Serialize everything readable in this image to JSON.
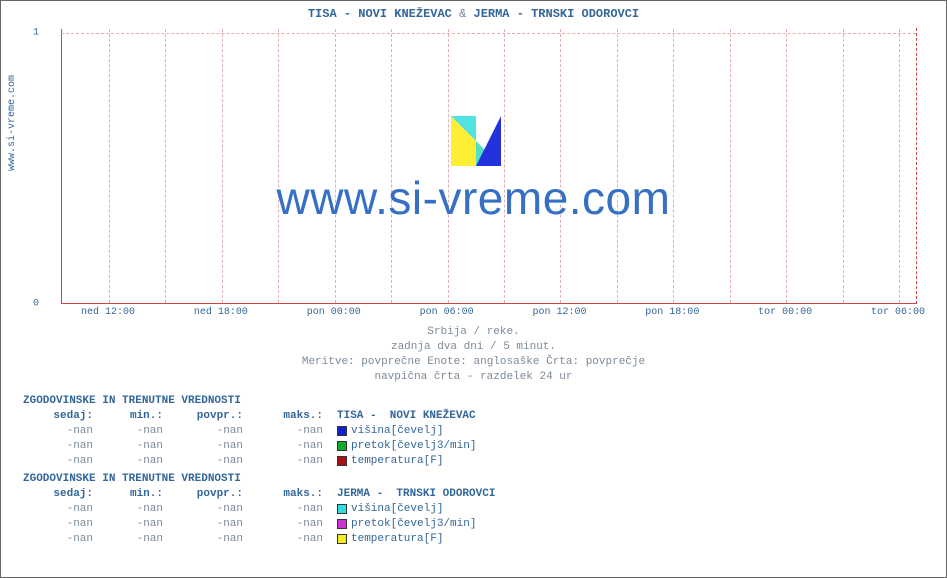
{
  "side_label": "www.si-vreme.com",
  "title_parts": {
    "a": "TISA -  NOVI KNEŽEVAC",
    "amp": " & ",
    "b": "JERMA -  TRNSKI ODOROVCI"
  },
  "chart": {
    "type": "line",
    "background_color": "#ffffff",
    "axis_color": "#cc4444",
    "grid_color": "#e0b0b0",
    "ylim": [
      0,
      1
    ],
    "yticks": [
      0,
      1
    ],
    "xticks": [
      "ned 12:00",
      "ned 18:00",
      "pon 00:00",
      "pon 06:00",
      "pon 12:00",
      "pon 18:00",
      "tor 00:00",
      "tor 06:00"
    ],
    "xtick_positions_pct": [
      5.5,
      18.7,
      31.9,
      45.1,
      58.3,
      71.5,
      84.7,
      97.9
    ],
    "vgrid_positions_pct": [
      5.5,
      12.1,
      18.7,
      25.3,
      31.9,
      38.5,
      45.1,
      51.7,
      58.3,
      64.9,
      71.5,
      78.1,
      84.7,
      91.3,
      97.9
    ],
    "series": []
  },
  "sublines": [
    "Srbija / reke.",
    "zadnja dva dni / 5 minut.",
    "Meritve: povprečne  Enote: anglosaške  Črta: povprečje",
    "navpična črta - razdelek 24 ur"
  ],
  "watermark_text": "www.si-vreme.com",
  "watermark_colors": {
    "yellow": "#ffee33",
    "cyan": "#33dddd",
    "blue": "#2233dd"
  },
  "table_header": "ZGODOVINSKE IN TRENUTNE VREDNOSTI",
  "col_labels": {
    "sedaj": "sedaj:",
    "min": "min.:",
    "povpr": "povpr.:",
    "maks": "maks.:"
  },
  "blocks": [
    {
      "name": "TISA -  NOVI KNEŽEVAC",
      "rows": [
        {
          "sedaj": "-nan",
          "min": "-nan",
          "povpr": "-nan",
          "maks": "-nan",
          "color": "#1122cc",
          "label": "višina[čevelj]"
        },
        {
          "sedaj": "-nan",
          "min": "-nan",
          "povpr": "-nan",
          "maks": "-nan",
          "color": "#11aa22",
          "label": "pretok[čevelj3/min]"
        },
        {
          "sedaj": "-nan",
          "min": "-nan",
          "povpr": "-nan",
          "maks": "-nan",
          "color": "#aa1111",
          "label": "temperatura[F]"
        }
      ]
    },
    {
      "name": "JERMA -  TRNSKI ODOROVCI",
      "rows": [
        {
          "sedaj": "-nan",
          "min": "-nan",
          "povpr": "-nan",
          "maks": "-nan",
          "color": "#33dddd",
          "label": "višina[čevelj]"
        },
        {
          "sedaj": "-nan",
          "min": "-nan",
          "povpr": "-nan",
          "maks": "-nan",
          "color": "#cc33cc",
          "label": "pretok[čevelj3/min]"
        },
        {
          "sedaj": "-nan",
          "min": "-nan",
          "povpr": "-nan",
          "maks": "-nan",
          "color": "#eeee22",
          "label": "temperatura[F]"
        }
      ]
    }
  ]
}
